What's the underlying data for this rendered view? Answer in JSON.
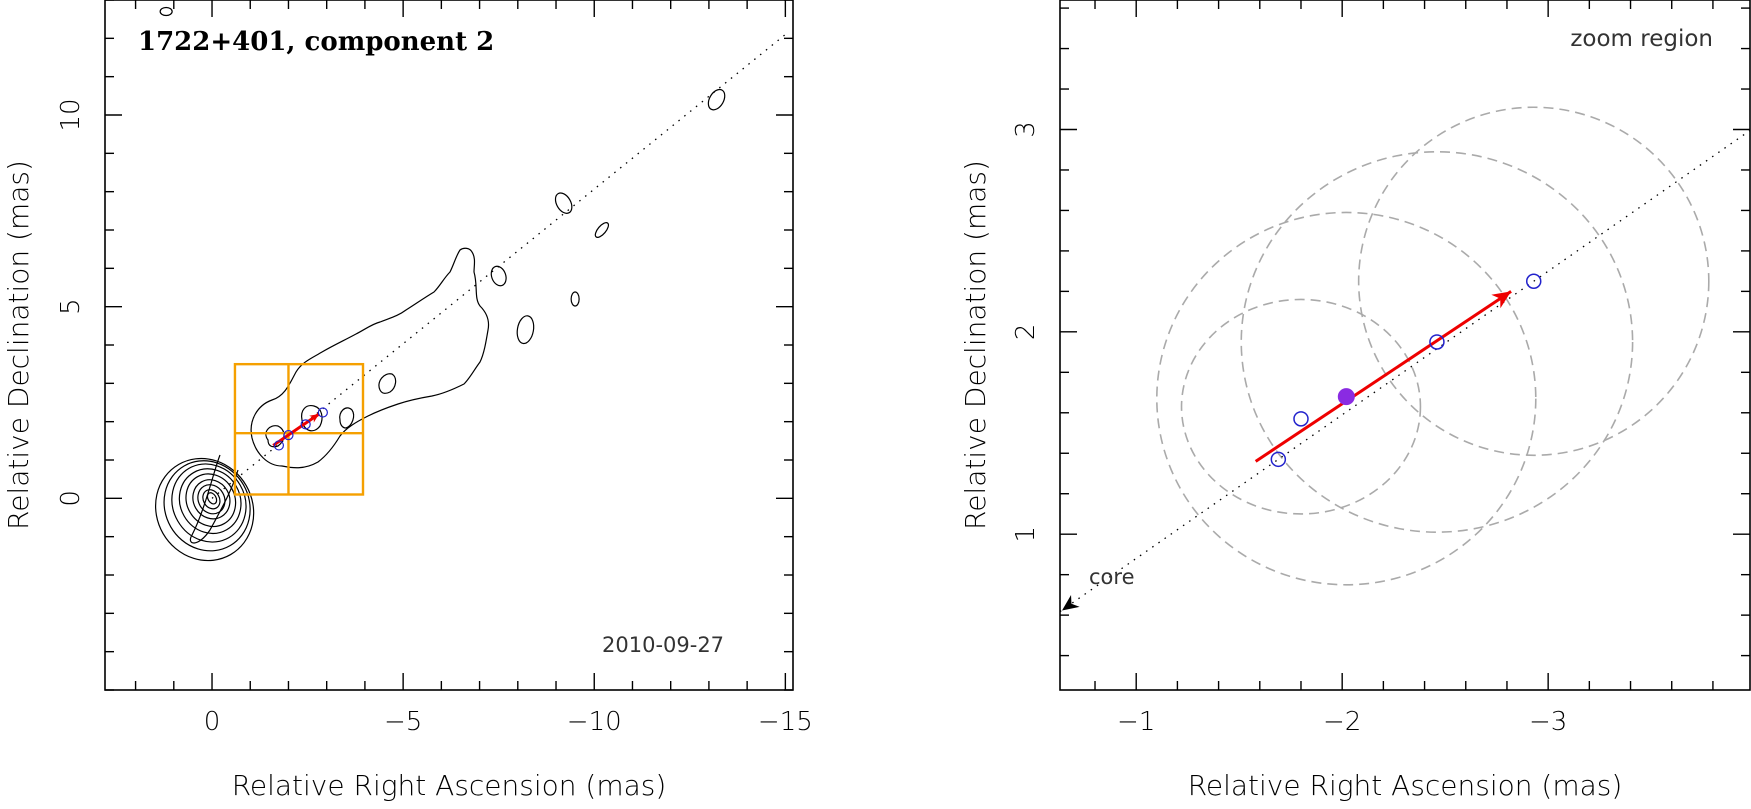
{
  "chart_data": [
    {
      "type": "scatter",
      "name": "overview",
      "title": "1722+401, component 2",
      "annotation": "2010-09-27",
      "xlabel": "Relative Right Ascension (mas)",
      "ylabel": "Relative Declination (mas)",
      "xlim": [
        2.8,
        -15.2
      ],
      "ylim": [
        -5,
        13
      ],
      "xticks": [
        0,
        -5,
        -10,
        -15
      ],
      "xtick_labels": [
        "0",
        "−5",
        "−10",
        "−15"
      ],
      "yticks": [
        0,
        5,
        10
      ],
      "ytick_labels": [
        "0",
        "5",
        "10"
      ],
      "core": [
        0,
        0
      ],
      "jet_axis": {
        "from": [
          0,
          0
        ],
        "to": [
          -15,
          12.1
        ]
      },
      "components": [
        {
          "x": -1.75,
          "y": 1.38
        },
        {
          "x": -2.0,
          "y": 1.65
        },
        {
          "x": -2.45,
          "y": 1.93
        },
        {
          "x": -2.9,
          "y": 2.24
        }
      ],
      "velocity_arrow": {
        "from": [
          -1.6,
          1.38
        ],
        "to": [
          -2.8,
          2.2
        ],
        "color": "#ee0000"
      },
      "zoom_box": {
        "x": [
          -0.6,
          -3.95
        ],
        "y": [
          0.1,
          3.5
        ],
        "grid_x": -2.0,
        "grid_y": 1.7,
        "color": "#f5a000"
      }
    },
    {
      "type": "scatter",
      "name": "zoom",
      "title": "zoom region",
      "xlabel": "Relative Right Ascension (mas)",
      "ylabel": "Relative Declination (mas)",
      "xlim": [
        -0.63,
        -3.98
      ],
      "ylim": [
        0.23,
        3.64
      ],
      "xticks": [
        -1,
        -2,
        -3
      ],
      "xtick_labels": [
        "−1",
        "−2",
        "−3"
      ],
      "yticks": [
        1,
        2,
        3
      ],
      "ytick_labels": [
        "1",
        "2",
        "3"
      ],
      "core_label": "core",
      "components": [
        {
          "x": -1.69,
          "y": 1.37,
          "filled": false
        },
        {
          "x": -1.8,
          "y": 1.57,
          "filled": false
        },
        {
          "x": -2.02,
          "y": 1.68,
          "filled": true
        },
        {
          "x": -2.46,
          "y": 1.95,
          "filled": false
        },
        {
          "x": -2.93,
          "y": 2.25,
          "filled": false
        }
      ],
      "component_color": "#2222cc",
      "highlight_color": "#8a2be2",
      "velocity_arrow": {
        "from": [
          -1.58,
          1.36
        ],
        "to": [
          -2.82,
          2.2
        ],
        "color": "#ee0000"
      },
      "size_circles": [
        {
          "x": -1.8,
          "y": 1.63,
          "rx": 0.58,
          "ry": 0.53
        },
        {
          "x": -2.02,
          "y": 1.67,
          "rx": 0.92,
          "ry": 0.92
        },
        {
          "x": -2.46,
          "y": 1.95,
          "rx": 0.95,
          "ry": 0.94
        },
        {
          "x": -2.93,
          "y": 2.25,
          "rx": 0.85,
          "ry": 0.86
        }
      ]
    }
  ]
}
